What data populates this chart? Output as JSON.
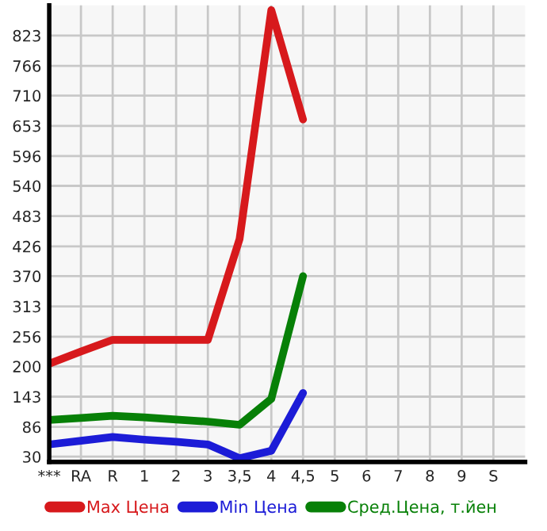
{
  "chart_data": {
    "type": "line",
    "categories": [
      "***",
      "RA",
      "R",
      "1",
      "2",
      "3",
      "3,5",
      "4",
      "4,5",
      "5",
      "6",
      "7",
      "8",
      "9",
      "S"
    ],
    "series": [
      {
        "name": "Max Цена",
        "color": "#d7191c",
        "values": [
          205,
          228,
          250,
          250,
          250,
          250,
          440,
          871,
          665,
          null,
          null,
          null,
          null,
          null,
          null
        ]
      },
      {
        "name": "Min Цена",
        "color": "#1c1cd7",
        "values": [
          53,
          60,
          67,
          62,
          58,
          53,
          27,
          41,
          150,
          null,
          null,
          null,
          null,
          null,
          null
        ]
      },
      {
        "name": "Сред.Цена, т.йен",
        "color": "#078007",
        "values": [
          99,
          103,
          107,
          104,
          100,
          96,
          90,
          139,
          370,
          null,
          null,
          null,
          null,
          null,
          null
        ]
      }
    ],
    "ylim": [
      20,
      880
    ],
    "yticks": [
      30,
      86,
      143,
      200,
      256,
      313,
      370,
      426,
      483,
      540,
      596,
      653,
      710,
      766,
      823
    ],
    "grid": true,
    "legend": "bottom",
    "marker": "none",
    "line_style": "solid"
  }
}
